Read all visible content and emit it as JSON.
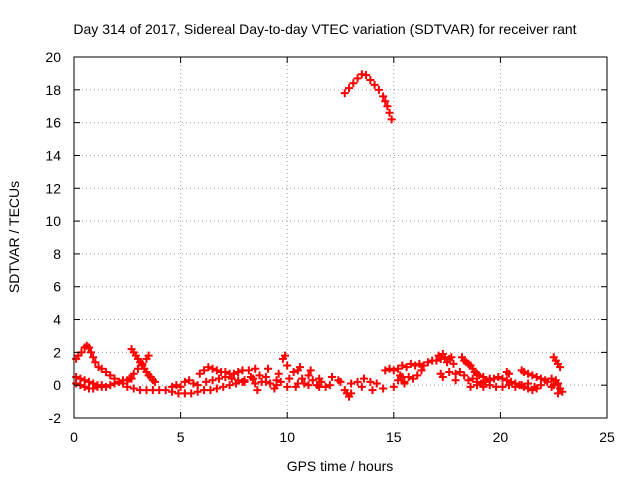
{
  "chart_data": {
    "type": "scatter",
    "title": "Day 314 of 2017, Sidereal Day-to-day VTEC variation (SDTVAR) for receiver rant",
    "xlabel": "GPS time / hours",
    "ylabel": "SDTVAR / TECUs",
    "xlim": [
      0,
      25
    ],
    "ylim": [
      -2,
      20
    ],
    "x_ticks": [
      0,
      5,
      10,
      15,
      20,
      25
    ],
    "y_ticks": [
      -2,
      0,
      2,
      4,
      6,
      8,
      10,
      12,
      14,
      16,
      18,
      20
    ],
    "x_tick_labels": [
      "0",
      "5",
      "10",
      "15",
      "20",
      "25"
    ],
    "y_tick_labels": [
      "-2",
      "0",
      "2",
      "4",
      "6",
      "8",
      "10",
      "12",
      "14",
      "16",
      "18",
      "20"
    ],
    "grid": true,
    "marker": "plus",
    "color": "#ff0000",
    "series": [
      {
        "values": [
          [
            0.1,
            1.6
          ],
          [
            0.2,
            1.8
          ],
          [
            0.35,
            2.0
          ],
          [
            0.5,
            2.3
          ],
          [
            0.6,
            2.4
          ],
          [
            0.7,
            2.3
          ],
          [
            0.8,
            2.0
          ],
          [
            0.9,
            1.7
          ],
          [
            1.0,
            1.4
          ],
          [
            1.15,
            1.1
          ],
          [
            1.3,
            1.0
          ],
          [
            1.5,
            0.8
          ],
          [
            1.7,
            0.6
          ],
          [
            1.9,
            0.4
          ],
          [
            2.1,
            0.2
          ],
          [
            2.3,
            0.1
          ],
          [
            0.1,
            0.5
          ],
          [
            0.3,
            0.4
          ],
          [
            0.5,
            0.3
          ],
          [
            0.7,
            0.2
          ],
          [
            0.9,
            0.1
          ],
          [
            1.1,
            0.0
          ],
          [
            1.3,
            -0.1
          ],
          [
            1.5,
            -0.1
          ],
          [
            1.7,
            0.0
          ],
          [
            1.9,
            0.1
          ],
          [
            2.1,
            0.2
          ],
          [
            2.3,
            0.3
          ],
          [
            2.5,
            0.3
          ],
          [
            2.7,
            0.4
          ],
          [
            0.1,
            0.1
          ],
          [
            0.3,
            0.0
          ],
          [
            0.5,
            -0.1
          ],
          [
            0.7,
            -0.2
          ],
          [
            0.9,
            -0.2
          ],
          [
            1.1,
            -0.1
          ],
          [
            1.3,
            0.0
          ],
          [
            2.7,
            2.2
          ],
          [
            2.8,
            2.0
          ],
          [
            2.9,
            1.8
          ],
          [
            3.0,
            1.6
          ],
          [
            3.1,
            1.4
          ],
          [
            3.2,
            1.2
          ],
          [
            3.3,
            1.0
          ],
          [
            3.4,
            0.8
          ],
          [
            3.5,
            0.6
          ],
          [
            3.6,
            0.5
          ],
          [
            3.7,
            0.3
          ],
          [
            3.8,
            0.2
          ],
          [
            2.6,
            0.4
          ],
          [
            2.8,
            0.7
          ],
          [
            3.0,
            1.0
          ],
          [
            3.2,
            1.3
          ],
          [
            3.4,
            1.6
          ],
          [
            3.5,
            1.8
          ],
          [
            2.5,
            -0.1
          ],
          [
            2.8,
            -0.2
          ],
          [
            3.1,
            -0.3
          ],
          [
            3.4,
            -0.3
          ],
          [
            3.7,
            -0.3
          ],
          [
            4.0,
            -0.3
          ],
          [
            4.3,
            -0.3
          ],
          [
            4.6,
            -0.4
          ],
          [
            4.9,
            -0.5
          ],
          [
            5.2,
            -0.5
          ],
          [
            5.5,
            -0.5
          ],
          [
            5.8,
            -0.4
          ],
          [
            6.1,
            -0.3
          ],
          [
            6.4,
            -0.3
          ],
          [
            6.7,
            -0.2
          ],
          [
            7.0,
            -0.1
          ],
          [
            7.3,
            0.0
          ],
          [
            7.6,
            0.1
          ],
          [
            7.9,
            0.2
          ],
          [
            4.6,
            -0.1
          ],
          [
            4.8,
            0.0
          ],
          [
            5.0,
            -0.1
          ],
          [
            5.2,
            0.2
          ],
          [
            5.4,
            0.3
          ],
          [
            5.6,
            0.1
          ],
          [
            5.8,
            0.0
          ],
          [
            5.9,
            0.7
          ],
          [
            6.1,
            0.9
          ],
          [
            6.3,
            1.1
          ],
          [
            6.5,
            1.0
          ],
          [
            6.7,
            0.9
          ],
          [
            6.9,
            0.8
          ],
          [
            7.1,
            0.8
          ],
          [
            7.3,
            0.7
          ],
          [
            7.5,
            0.7
          ],
          [
            7.7,
            0.8
          ],
          [
            7.9,
            0.9
          ],
          [
            6.2,
            0.2
          ],
          [
            6.5,
            0.3
          ],
          [
            6.8,
            0.4
          ],
          [
            7.1,
            0.5
          ],
          [
            7.4,
            0.4
          ],
          [
            7.7,
            0.3
          ],
          [
            8.0,
            0.3
          ],
          [
            8.3,
            0.5
          ],
          [
            8.2,
            0.9
          ],
          [
            8.4,
            0.4
          ],
          [
            8.5,
            1.0
          ],
          [
            8.6,
            -0.3
          ],
          [
            8.7,
            0.6
          ],
          [
            8.8,
            0.2
          ],
          [
            9.0,
            0.5
          ],
          [
            9.1,
            1.0
          ],
          [
            9.2,
            0.1
          ],
          [
            9.4,
            -0.2
          ],
          [
            9.5,
            0.3
          ],
          [
            9.6,
            0.7
          ],
          [
            9.7,
            0.2
          ],
          [
            9.8,
            1.6
          ],
          [
            9.9,
            1.8
          ],
          [
            10.0,
            1.2
          ],
          [
            10.1,
            0.4
          ],
          [
            10.3,
            0.8
          ],
          [
            10.4,
            -0.1
          ],
          [
            10.5,
            0.9
          ],
          [
            10.6,
            1.1
          ],
          [
            10.7,
            0.4
          ],
          [
            10.8,
            0.1
          ],
          [
            11.0,
            0.6
          ],
          [
            11.1,
            0.9
          ],
          [
            11.2,
            0.3
          ],
          [
            11.4,
            0.0
          ],
          [
            11.5,
            0.4
          ],
          [
            11.6,
            0.2
          ],
          [
            11.8,
            -0.1
          ],
          [
            8.0,
            0.2
          ],
          [
            8.5,
            0.1
          ],
          [
            9.0,
            0.2
          ],
          [
            9.5,
            0.0
          ],
          [
            10.0,
            -0.1
          ],
          [
            10.5,
            0.1
          ],
          [
            11.0,
            0.0
          ],
          [
            11.5,
            -0.1
          ],
          [
            12.0,
            0.0
          ],
          [
            12.5,
            0.2
          ],
          [
            13.0,
            0.1
          ],
          [
            13.5,
            -0.1
          ],
          [
            14.0,
            -0.3
          ],
          [
            14.5,
            -0.2
          ],
          [
            15.0,
            -0.1
          ],
          [
            15.5,
            0.1
          ],
          [
            12.1,
            0.5
          ],
          [
            12.4,
            0.3
          ],
          [
            12.7,
            -0.3
          ],
          [
            12.8,
            -0.5
          ],
          [
            12.9,
            -0.7
          ],
          [
            13.0,
            -0.5
          ],
          [
            13.3,
            0.2
          ],
          [
            13.6,
            0.4
          ],
          [
            13.9,
            0.2
          ],
          [
            14.2,
            0.1
          ],
          [
            12.7,
            17.8
          ],
          [
            12.9,
            18.1
          ],
          [
            13.1,
            18.4
          ],
          [
            13.3,
            18.7
          ],
          [
            13.5,
            18.95
          ],
          [
            13.7,
            18.9
          ],
          [
            13.9,
            18.6
          ],
          [
            14.1,
            18.3
          ],
          [
            14.3,
            18.0
          ],
          [
            14.5,
            17.6
          ],
          [
            14.6,
            17.3
          ],
          [
            14.7,
            17.0
          ],
          [
            14.8,
            16.6
          ],
          [
            14.9,
            16.2
          ],
          [
            14.6,
            0.9
          ],
          [
            14.8,
            1.0
          ],
          [
            15.0,
            0.9
          ],
          [
            15.2,
            1.0
          ],
          [
            15.4,
            1.2
          ],
          [
            15.6,
            1.1
          ],
          [
            15.8,
            1.3
          ],
          [
            16.0,
            1.2
          ],
          [
            16.2,
            1.3
          ],
          [
            16.4,
            1.2
          ],
          [
            16.6,
            1.4
          ],
          [
            16.8,
            1.5
          ],
          [
            15.2,
            0.3
          ],
          [
            15.3,
            0.6
          ],
          [
            15.4,
            0.5
          ],
          [
            15.5,
            0.2
          ],
          [
            15.7,
            0.5
          ],
          [
            15.9,
            0.4
          ],
          [
            16.1,
            0.6
          ],
          [
            16.3,
            0.9
          ],
          [
            17.0,
            1.5
          ],
          [
            17.1,
            1.8
          ],
          [
            17.2,
            1.6
          ],
          [
            17.3,
            1.9
          ],
          [
            17.4,
            1.7
          ],
          [
            17.5,
            1.4
          ],
          [
            17.6,
            1.6
          ],
          [
            17.7,
            1.7
          ],
          [
            17.8,
            1.3
          ],
          [
            17.2,
            0.7
          ],
          [
            17.3,
            0.5
          ],
          [
            17.6,
            0.8
          ],
          [
            18.2,
            1.7
          ],
          [
            18.3,
            1.5
          ],
          [
            18.4,
            1.4
          ],
          [
            18.5,
            1.3
          ],
          [
            18.6,
            1.2
          ],
          [
            18.7,
            1.0
          ],
          [
            18.8,
            0.8
          ],
          [
            18.9,
            0.7
          ],
          [
            19.0,
            0.6
          ],
          [
            19.2,
            0.5
          ],
          [
            19.5,
            0.4
          ],
          [
            17.9,
            0.3
          ],
          [
            17.9,
            0.7
          ],
          [
            18.1,
            0.8
          ],
          [
            18.3,
            0.6
          ],
          [
            18.5,
            0.3
          ],
          [
            18.7,
            0.4
          ],
          [
            18.9,
            0.2
          ],
          [
            19.1,
            0.1
          ],
          [
            19.3,
            0.2
          ],
          [
            19.5,
            0.3
          ],
          [
            19.7,
            0.4
          ],
          [
            19.9,
            0.5
          ],
          [
            20.1,
            0.4
          ],
          [
            20.3,
            0.3
          ],
          [
            20.5,
            0.2
          ],
          [
            20.7,
            0.1
          ],
          [
            20.9,
            0.0
          ],
          [
            21.1,
            -0.1
          ],
          [
            21.3,
            -0.2
          ],
          [
            21.5,
            -0.3
          ],
          [
            21.7,
            -0.2
          ],
          [
            21.9,
            0.0
          ],
          [
            18.6,
            -0.1
          ],
          [
            18.9,
            0.0
          ],
          [
            19.2,
            -0.1
          ],
          [
            19.5,
            0.0
          ],
          [
            19.8,
            -0.1
          ],
          [
            20.1,
            -0.1
          ],
          [
            20.4,
            0.0
          ],
          [
            20.7,
            -0.1
          ],
          [
            21.0,
            0.0
          ],
          [
            21.3,
            0.1
          ],
          [
            21.6,
            -0.1
          ],
          [
            20.3,
            0.8
          ],
          [
            20.4,
            0.7
          ],
          [
            21.0,
            0.9
          ],
          [
            21.1,
            0.8
          ],
          [
            21.3,
            0.7
          ],
          [
            21.5,
            0.6
          ],
          [
            21.7,
            0.5
          ],
          [
            21.9,
            0.4
          ],
          [
            22.1,
            0.3
          ],
          [
            22.2,
            0.2
          ],
          [
            22.5,
            1.7
          ],
          [
            22.6,
            1.5
          ],
          [
            22.7,
            1.3
          ],
          [
            22.8,
            1.1
          ],
          [
            22.4,
            0.4
          ],
          [
            22.6,
            0.3
          ],
          [
            22.7,
            0.1
          ],
          [
            22.8,
            -0.2
          ],
          [
            22.9,
            -0.4
          ],
          [
            22.7,
            -0.5
          ],
          [
            22.5,
            0.0
          ],
          [
            22.4,
            -0.1
          ]
        ]
      }
    ]
  }
}
